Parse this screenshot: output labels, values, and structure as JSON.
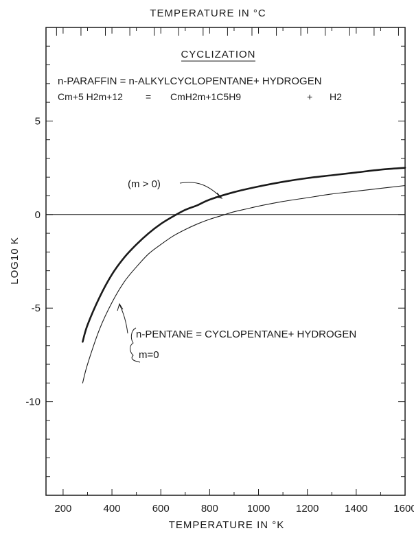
{
  "chart_data": {
    "type": "line",
    "title": "CYCLIZATION",
    "top_axis_label": "TEMPERATURE IN °C",
    "xlabel": "TEMPERATURE IN °K",
    "ylabel": "LOG10 K",
    "xlim": [
      130,
      1600
    ],
    "ylim": [
      -15,
      10
    ],
    "x_tick_labels": [
      "200",
      "400",
      "600",
      "800",
      "1000",
      "1200",
      "1400",
      "1600"
    ],
    "y_tick_labels": [
      "5",
      "0",
      "-5",
      "-10"
    ],
    "equation_line1": "n-PARAFFIN = n-ALKYLCYCLOPENTANE+ HYDROGEN",
    "equation_line2_left": "Cm+5 H2m+12",
    "equation_line2_eq": "=",
    "equation_line2_mid": "CmH2m+1C5H9",
    "equation_line2_plus": "+",
    "equation_line2_right": "H2",
    "annotation_m_gt_0": "(m > 0)",
    "annotation_pentane": "n-PENTANE = CYCLOPENTANE+ HYDROGEN",
    "annotation_m_eq_0": "m=0",
    "series": [
      {
        "name": "(m > 0)",
        "x": [
          280,
          300,
          350,
          400,
          450,
          500,
          550,
          600,
          650,
          700,
          750,
          800,
          900,
          1000,
          1100,
          1200,
          1300,
          1400,
          1500,
          1600
        ],
        "y": [
          -6.8,
          -5.9,
          -4.4,
          -3.2,
          -2.3,
          -1.6,
          -1.0,
          -0.5,
          -0.1,
          0.25,
          0.5,
          0.8,
          1.2,
          1.5,
          1.75,
          1.95,
          2.1,
          2.25,
          2.4,
          2.5
        ]
      },
      {
        "name": "n-PENTANE = CYCLOPENTANE+ HYDROGEN",
        "x": [
          280,
          300,
          350,
          400,
          450,
          500,
          550,
          600,
          650,
          700,
          750,
          800,
          850,
          900,
          950,
          1000,
          1100,
          1200,
          1300,
          1400,
          1500,
          1600
        ],
        "y": [
          -9.0,
          -8.0,
          -6.1,
          -4.7,
          -3.6,
          -2.8,
          -2.1,
          -1.6,
          -1.15,
          -0.8,
          -0.5,
          -0.25,
          -0.05,
          0.15,
          0.3,
          0.45,
          0.7,
          0.9,
          1.1,
          1.25,
          1.4,
          1.55
        ]
      }
    ]
  },
  "colors": {
    "ink": "#1a1a1a",
    "background": "#ffffff"
  }
}
